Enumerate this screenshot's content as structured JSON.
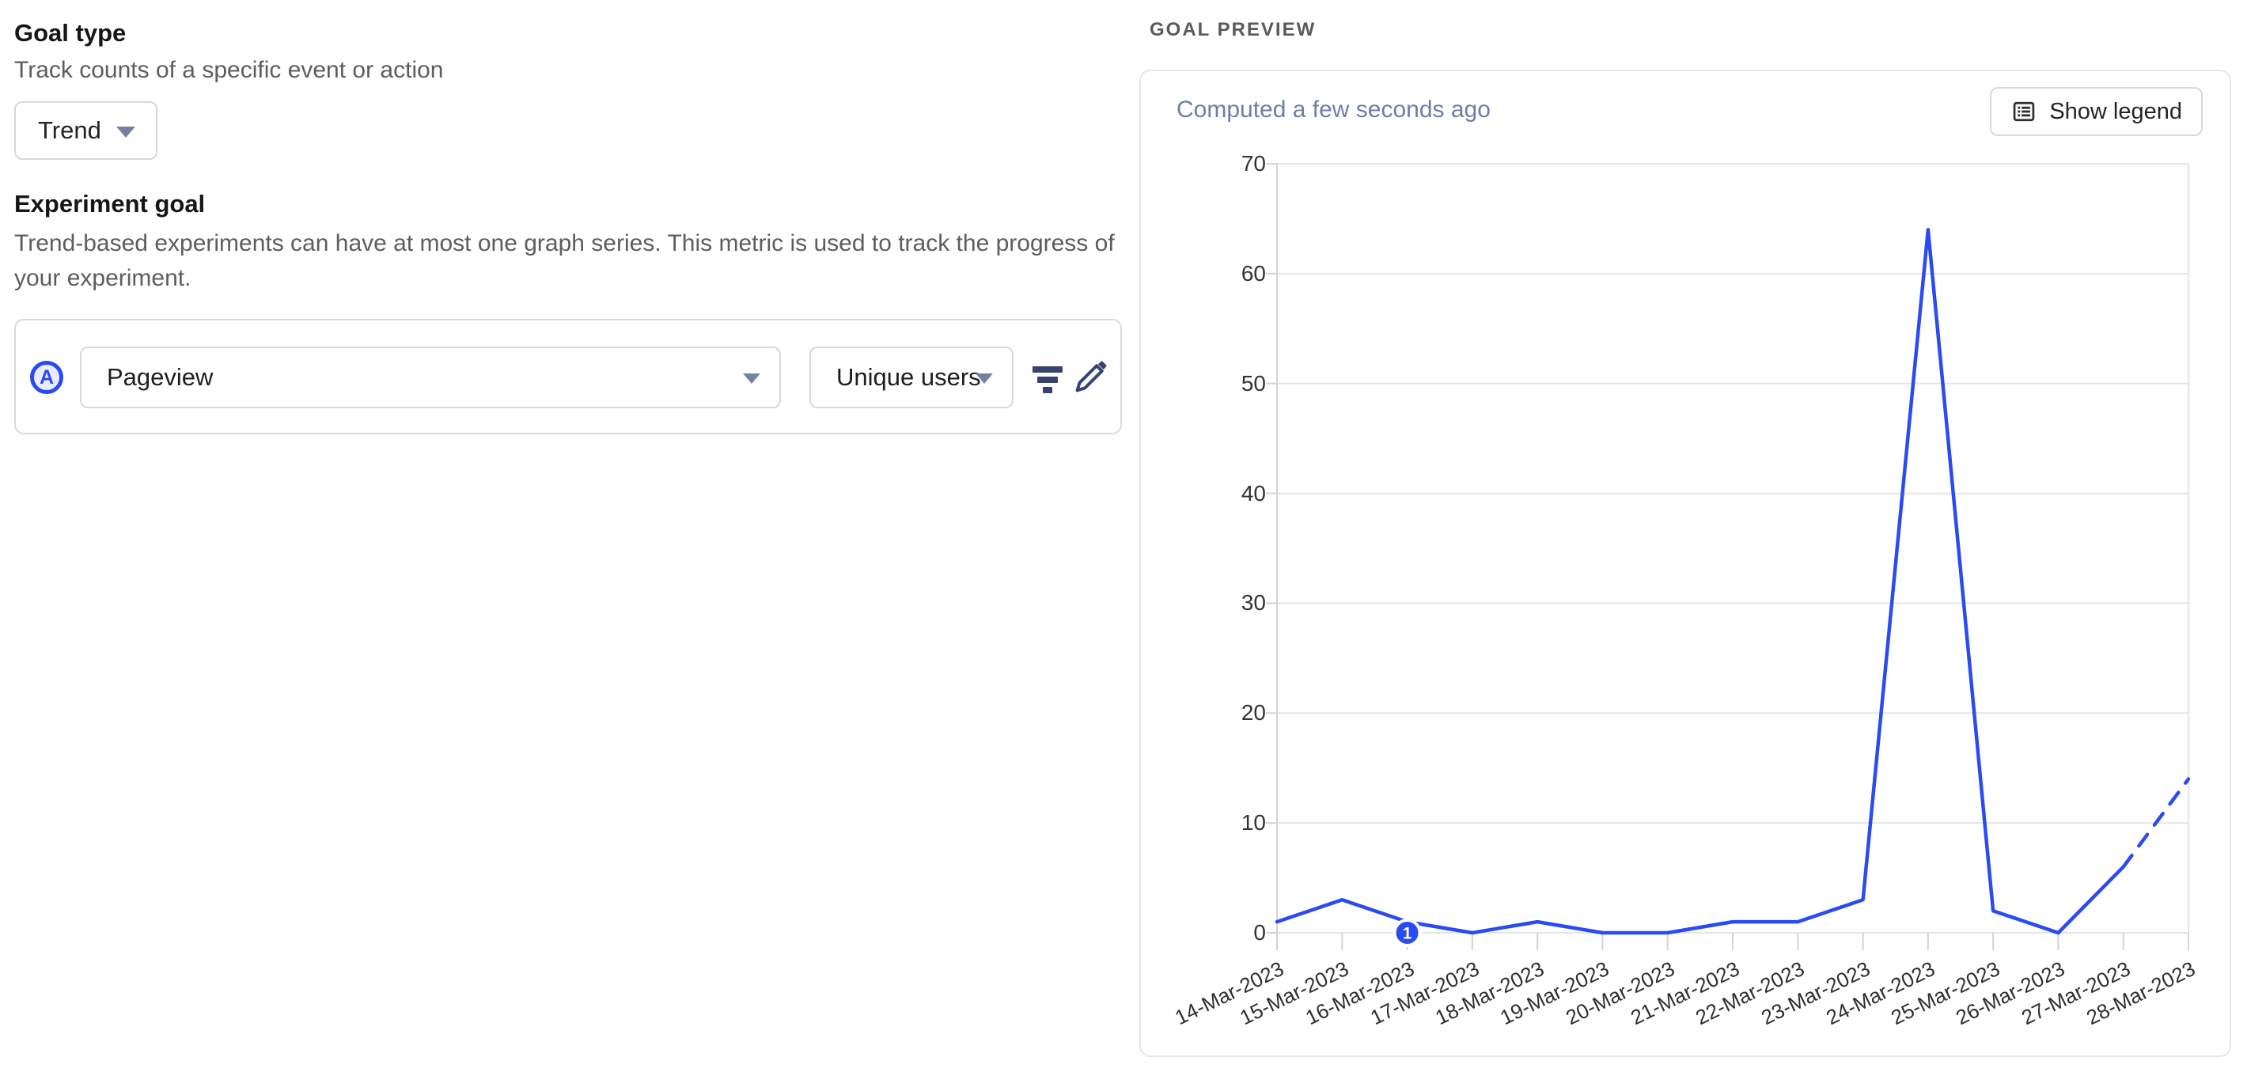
{
  "left": {
    "goal_type_title": "Goal type",
    "goal_type_subtitle": "Track counts of a specific event or action",
    "goal_type_value": "Trend",
    "experiment_goal_title": "Experiment goal",
    "description_lines": [
      "Trend-based experiments can have at most one graph series. This metric is used to track the progress of",
      "your experiment."
    ],
    "series_letter": "A",
    "event_value": "Pageview",
    "math_value": "Unique users",
    "icons": [
      "filter-icon",
      "edit-icon"
    ]
  },
  "preview": {
    "section_label": "GOAL PREVIEW",
    "computed": "Computed a few seconds ago",
    "show_legend": "Show legend",
    "show_legend_icon": "legend-list-icon"
  },
  "colors": {
    "accent_blue": "#2b4bf2",
    "badge_fill": "#e9edfe",
    "icon_navy": "#36436e",
    "chevron": "#7581a1",
    "grid": "#e5e5e7",
    "axis": "#d4d4d8",
    "muted_text": "#5d5d5d",
    "computed_text": "#6f7da4"
  },
  "chart_data": {
    "type": "line",
    "x": [
      "14-Mar-2023",
      "15-Mar-2023",
      "16-Mar-2023",
      "17-Mar-2023",
      "18-Mar-2023",
      "19-Mar-2023",
      "20-Mar-2023",
      "21-Mar-2023",
      "22-Mar-2023",
      "23-Mar-2023",
      "24-Mar-2023",
      "25-Mar-2023",
      "26-Mar-2023",
      "27-Mar-2023",
      "28-Mar-2023"
    ],
    "series": [
      {
        "name": "Pageview (Unique users)",
        "values": [
          1,
          3,
          1,
          0,
          1,
          0,
          0,
          1,
          1,
          3,
          64,
          2,
          0,
          6,
          14
        ]
      }
    ],
    "dashed_tail_from_index": 13,
    "ylim": [
      0,
      70
    ],
    "ytick_interval": 10,
    "line_color": "#2b4bf2",
    "grid": "horizontal",
    "legend_position": "hidden",
    "annotations": [
      {
        "x_index": 2,
        "label": "1"
      }
    ]
  }
}
